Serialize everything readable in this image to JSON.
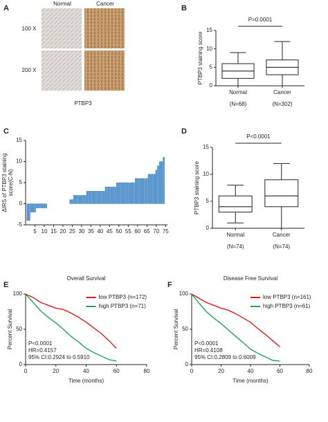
{
  "panel_a": {
    "label": "A",
    "columns": [
      "Normal",
      "Cancer"
    ],
    "rows": [
      "100 X",
      "200 X"
    ],
    "caption": "PTBP3"
  },
  "chart_data": [
    {
      "type": "box",
      "panel_label": "B",
      "ylabel": "PTBP3 staining score",
      "categories": [
        "Normal",
        "Cancer"
      ],
      "category_notes": [
        "(N=68)",
        "(N=302)"
      ],
      "boxes": [
        {
          "min": 0,
          "q1": 2,
          "median": 4,
          "q3": 6,
          "max": 9
        },
        {
          "min": 0,
          "q1": 3,
          "median": 5,
          "q3": 7,
          "max": 12
        }
      ],
      "annotation": "P=0.0001",
      "ylim": [
        0,
        15
      ],
      "yticks": [
        0,
        5,
        10,
        15
      ]
    },
    {
      "type": "bar",
      "panel_label": "C",
      "ylabel": [
        "ΔIRS of PTBP3 staining",
        "score(C-N)"
      ],
      "color": "#5b9bd5",
      "x": [
        1,
        2,
        3,
        4,
        5,
        6,
        7,
        8,
        9,
        10,
        11,
        12,
        13,
        14,
        15,
        16,
        17,
        18,
        19,
        20,
        21,
        22,
        23,
        24,
        25,
        26,
        27,
        28,
        29,
        30,
        31,
        32,
        33,
        34,
        35,
        36,
        37,
        38,
        39,
        40,
        41,
        42,
        43,
        44,
        45,
        46,
        47,
        48,
        49,
        50,
        51,
        52,
        53,
        54,
        55,
        56,
        57,
        58,
        59,
        60,
        61,
        62,
        63,
        64,
        65,
        66,
        67,
        68,
        69,
        70,
        71,
        72,
        73,
        74
      ],
      "values": [
        -4,
        -4,
        -2,
        -2,
        -2,
        -1,
        -1,
        -1,
        -1,
        -1,
        -1,
        0,
        0,
        0,
        0,
        0,
        0,
        0,
        0,
        0,
        0,
        0,
        0,
        1,
        1,
        2,
        2,
        2,
        2,
        2,
        2,
        2,
        3,
        3,
        3,
        3,
        3,
        3,
        3,
        3,
        3,
        3,
        4,
        4,
        4,
        4,
        4,
        4,
        5,
        5,
        5,
        5,
        5,
        5,
        5,
        5,
        5,
        5,
        6,
        6,
        6,
        6,
        6,
        6,
        6,
        7,
        7,
        7,
        7,
        8,
        9,
        10,
        10,
        11
      ],
      "xlim": [
        0,
        76
      ],
      "xticks": [
        5,
        10,
        15,
        20,
        25,
        30,
        35,
        40,
        45,
        50,
        55,
        60,
        65,
        70,
        75
      ],
      "ylim": [
        -5,
        15
      ],
      "yticks": [
        -5,
        0,
        5,
        10,
        15
      ]
    },
    {
      "type": "box",
      "panel_label": "D",
      "ylabel": "PTBP3 staining score",
      "categories": [
        "Normal",
        "Cancer"
      ],
      "category_notes": [
        "(N=74)",
        "(N=74)"
      ],
      "boxes": [
        {
          "min": 1,
          "q1": 3,
          "median": 4,
          "q3": 6,
          "max": 8
        },
        {
          "min": 0,
          "q1": 4,
          "median": 6,
          "q3": 9,
          "max": 12
        }
      ],
      "annotation": "P<0.0001",
      "ylim": [
        0,
        15
      ],
      "yticks": [
        0,
        5,
        10,
        15
      ]
    },
    {
      "type": "line",
      "panel_label": "E",
      "title": "Overall  Survival",
      "ylabel": "Percent Survival",
      "xlabel": "Time (months)",
      "series": [
        {
          "name": "low PTBP3 (n=172)",
          "color": "#e31a1c",
          "x": [
            0,
            5,
            10,
            15,
            20,
            25,
            30,
            35,
            40,
            45,
            50,
            55,
            60
          ],
          "values": [
            100,
            95,
            88,
            84,
            80,
            78,
            73,
            67,
            60,
            52,
            44,
            34,
            23
          ]
        },
        {
          "name": "high PTBP3 (n=71)",
          "color": "#1fa35a",
          "x": [
            0,
            5,
            10,
            15,
            20,
            25,
            30,
            35,
            40,
            45,
            50,
            55,
            60
          ],
          "values": [
            100,
            88,
            76,
            67,
            59,
            50,
            40,
            32,
            23,
            17,
            12,
            7,
            5
          ]
        }
      ],
      "annotations": [
        "P<0.0001",
        "HR=0.4157",
        "95% CI:0.2924 to 0.5910"
      ],
      "xlim": [
        0,
        80
      ],
      "xticks": [
        0,
        20,
        40,
        60,
        80
      ],
      "ylim": [
        0,
        100
      ],
      "yticks": [
        0,
        50,
        100
      ]
    },
    {
      "type": "line",
      "panel_label": "F",
      "title": "Disease Free  Survival",
      "ylabel": "Percent Survival",
      "xlabel": "Time (months)",
      "series": [
        {
          "name": "low PTBP3 (n=161)",
          "color": "#e31a1c",
          "x": [
            0,
            5,
            10,
            15,
            20,
            25,
            30,
            35,
            40,
            45,
            50,
            55,
            60
          ],
          "values": [
            100,
            94,
            88,
            84,
            80,
            77,
            72,
            66,
            60,
            51,
            43,
            34,
            25
          ]
        },
        {
          "name": "high PTBP3 (n=61)",
          "color": "#1fa35a",
          "x": [
            0,
            5,
            10,
            15,
            20,
            25,
            30,
            35,
            40,
            45,
            50,
            55,
            60
          ],
          "values": [
            100,
            87,
            75,
            66,
            58,
            49,
            40,
            31,
            22,
            16,
            11,
            6,
            5
          ]
        }
      ],
      "annotations": [
        "P<0.0001",
        "HR=0.4108",
        "95% CI:0.2809 to 0.6009"
      ],
      "xlim": [
        0,
        80
      ],
      "xticks": [
        0,
        20,
        40,
        60,
        80
      ],
      "ylim": [
        0,
        100
      ],
      "yticks": [
        0,
        50,
        100
      ]
    }
  ]
}
